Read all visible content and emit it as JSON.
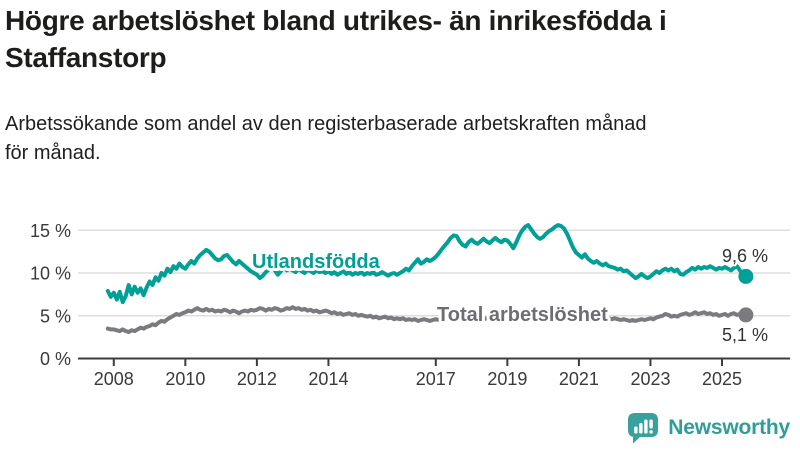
{
  "header": {
    "title": "Högre arbetslöshet bland utrikes- än inrikesfödda i\nStaffanstorp",
    "subtitle": "Arbetssökande som andel av den registerbaserade arbetskraften månad\nför månad."
  },
  "footer": {
    "brand_name": "Newsworthy",
    "logo_icon": "bar-chart-speech-bubble-icon"
  },
  "colors": {
    "accent_teal": "#00a096",
    "line_gray": "#7a7a7f",
    "label_gray": "#6d6d72",
    "logo_teal": "#38a09d",
    "axis": "#3c3c3c",
    "gridline": "#dedede",
    "text_dark": "#1d1d1b",
    "value_label": "#333333"
  },
  "chart_data": {
    "type": "line",
    "title": "Högre arbetslöshet bland utrikes- än inrikesfödda i Staffanstorp",
    "subtitle": "Arbetssökande som andel av den registerbaserade arbetskraften månad för månad.",
    "unit": "%",
    "frequency": "monthly",
    "start": "2007-11",
    "end": "2025-09",
    "grid": true,
    "xlim": [
      2007.0,
      2026.9
    ],
    "ylim": [
      0,
      17.5
    ],
    "x_ticks": [
      2008,
      2010,
      2012,
      2014,
      2017,
      2019,
      2021,
      2023,
      2025
    ],
    "y_ticks": [
      0,
      5,
      10,
      15
    ],
    "y_tick_suffix": " %",
    "series": [
      {
        "name": "Utlandsfödda",
        "color": "#00a096",
        "label_color": "#00a096",
        "end_value": 9.6,
        "end_label": "9,6 %",
        "values": [
          7.9,
          7.2,
          7.7,
          6.9,
          7.8,
          6.6,
          7.3,
          8.6,
          7.5,
          8.4,
          7.7,
          8.2,
          7.4,
          8.3,
          9.0,
          8.6,
          9.5,
          9.1,
          10.0,
          9.7,
          10.5,
          10.1,
          10.8,
          10.5,
          11.1,
          10.7,
          10.5,
          11.0,
          11.4,
          11.1,
          11.7,
          12.1,
          12.4,
          12.7,
          12.5,
          12.1,
          11.7,
          11.5,
          11.6,
          12.0,
          12.1,
          11.7,
          11.3,
          11.0,
          11.4,
          11.1,
          10.8,
          10.5,
          10.2,
          10.0,
          9.8,
          9.4,
          9.7,
          10.1,
          10.4,
          10.7,
          10.3,
          9.8,
          10.2,
          10.6,
          10.3,
          10.5,
          10.3,
          10.1,
          10.5,
          10.2,
          10.0,
          10.4,
          10.2,
          10.0,
          10.3,
          10.1,
          10.2,
          10.0,
          10.2,
          9.9,
          10.1,
          9.8,
          10.0,
          10.2,
          9.9,
          10.1,
          9.8,
          10.0,
          9.9,
          10.1,
          9.8,
          10.0,
          9.9,
          10.1,
          9.8,
          9.9,
          10.1,
          9.9,
          9.7,
          9.9,
          10.0,
          9.8,
          10.0,
          10.2,
          10.5,
          10.3,
          10.8,
          11.2,
          11.6,
          11.1,
          11.3,
          11.6,
          11.4,
          11.6,
          11.9,
          12.3,
          12.8,
          13.2,
          13.6,
          14.1,
          14.4,
          14.3,
          13.7,
          13.3,
          13.1,
          13.6,
          13.9,
          13.6,
          13.4,
          13.7,
          14.0,
          13.7,
          13.5,
          13.8,
          14.1,
          13.8,
          13.6,
          13.9,
          13.8,
          13.4,
          12.9,
          13.6,
          14.4,
          15.0,
          15.4,
          15.6,
          15.1,
          14.6,
          14.2,
          14.0,
          14.2,
          14.6,
          14.9,
          15.1,
          15.4,
          15.6,
          15.5,
          15.2,
          14.6,
          13.8,
          13.0,
          12.4,
          12.1,
          11.8,
          12.2,
          11.7,
          11.4,
          11.2,
          11.4,
          11.1,
          10.9,
          11.1,
          10.8,
          10.7,
          10.6,
          10.4,
          10.5,
          10.2,
          10.3,
          10.0,
          9.7,
          9.4,
          9.6,
          9.9,
          9.6,
          9.4,
          9.6,
          9.9,
          10.2,
          10.0,
          10.3,
          10.5,
          10.3,
          10.5,
          10.2,
          10.4,
          9.9,
          9.8,
          10.1,
          10.3,
          10.6,
          10.4,
          10.7,
          10.5,
          10.7,
          10.6,
          10.8,
          10.6,
          10.4,
          10.6,
          10.5,
          10.7,
          10.5,
          10.3,
          10.6,
          10.8,
          10.3,
          9.8,
          9.6
        ]
      },
      {
        "name": "Total arbetslöshet",
        "color": "#7a7a7f",
        "label_color": "#6d6d72",
        "end_value": 5.1,
        "end_label": "5,1 %",
        "values": [
          3.5,
          3.4,
          3.4,
          3.3,
          3.2,
          3.4,
          3.2,
          3.1,
          3.3,
          3.2,
          3.4,
          3.6,
          3.5,
          3.7,
          3.8,
          4.0,
          3.9,
          4.2,
          4.4,
          4.3,
          4.6,
          4.8,
          5.0,
          5.2,
          5.1,
          5.3,
          5.4,
          5.6,
          5.5,
          5.7,
          5.9,
          5.7,
          5.6,
          5.8,
          5.6,
          5.7,
          5.5,
          5.6,
          5.5,
          5.7,
          5.6,
          5.4,
          5.6,
          5.5,
          5.3,
          5.5,
          5.6,
          5.5,
          5.7,
          5.6,
          5.7,
          5.9,
          5.8,
          5.6,
          5.8,
          5.7,
          5.9,
          5.8,
          5.6,
          5.7,
          5.9,
          5.8,
          6.0,
          5.8,
          5.9,
          5.7,
          5.8,
          5.6,
          5.7,
          5.5,
          5.6,
          5.4,
          5.5,
          5.6,
          5.5,
          5.3,
          5.4,
          5.2,
          5.3,
          5.1,
          5.2,
          5.3,
          5.1,
          5.2,
          5.0,
          5.1,
          5.0,
          4.9,
          5.0,
          4.8,
          4.9,
          4.7,
          4.8,
          4.9,
          4.7,
          4.8,
          4.6,
          4.7,
          4.6,
          4.7,
          4.5,
          4.6,
          4.5,
          4.6,
          4.4,
          4.5,
          4.6,
          4.5,
          4.4,
          4.5,
          4.6,
          4.5,
          4.6,
          4.7,
          4.6,
          4.7,
          4.8,
          4.7,
          4.6,
          4.7,
          4.6,
          4.7,
          4.6,
          4.5,
          4.6,
          4.5,
          4.6,
          4.7,
          4.6,
          4.5,
          4.6,
          4.7,
          4.6,
          4.7,
          4.8,
          4.7,
          4.8,
          4.9,
          4.8,
          4.9,
          5.0,
          4.9,
          5.0,
          4.9,
          5.0,
          4.9,
          5.0,
          5.1,
          5.3,
          5.5,
          5.6,
          5.5,
          5.4,
          5.5,
          5.4,
          5.3,
          5.2,
          5.1,
          5.1,
          5.0,
          4.9,
          5.0,
          4.9,
          4.8,
          4.7,
          4.8,
          4.7,
          4.6,
          4.7,
          4.6,
          4.7,
          4.6,
          4.5,
          4.6,
          4.5,
          4.4,
          4.5,
          4.4,
          4.5,
          4.6,
          4.5,
          4.6,
          4.7,
          4.6,
          4.8,
          4.9,
          5.0,
          5.2,
          5.1,
          4.9,
          5.0,
          4.9,
          5.1,
          5.2,
          5.3,
          5.1,
          5.2,
          5.4,
          5.2,
          5.3,
          5.4,
          5.2,
          5.3,
          5.1,
          5.2,
          5.0,
          5.1,
          5.2,
          5.0,
          5.2,
          5.3,
          5.1,
          5.2,
          5.0,
          5.1
        ]
      }
    ]
  }
}
